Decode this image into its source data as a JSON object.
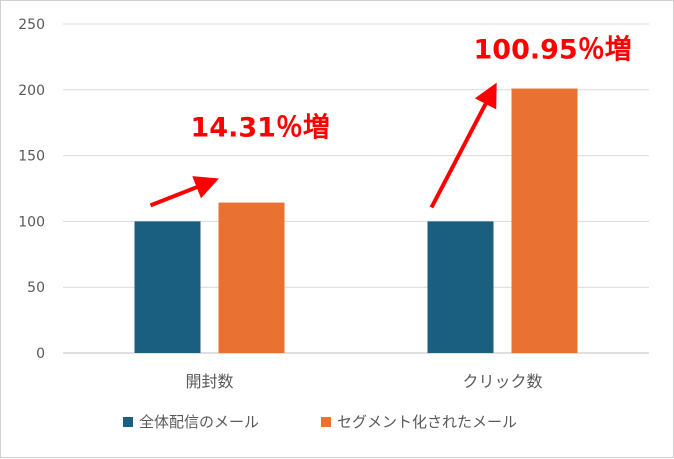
{
  "chart_data": {
    "type": "bar",
    "categories": [
      "開封数",
      "クリック数"
    ],
    "series": [
      {
        "name": "全体配信のメール",
        "values": [
          100,
          100
        ],
        "color": "#1a5e80"
      },
      {
        "name": "セグメント化されたメール",
        "values": [
          114.31,
          200.95
        ],
        "color": "#e97132"
      }
    ],
    "ylim": [
      0,
      250
    ],
    "yticks": [
      0,
      50,
      100,
      150,
      200,
      250
    ],
    "grid": true,
    "legend": "bottom",
    "annotations": [
      {
        "text": "14.31％増",
        "category": 0,
        "color": "#ff0000"
      },
      {
        "text": "100.95％増",
        "category": 1,
        "color": "#ff0000"
      }
    ]
  }
}
